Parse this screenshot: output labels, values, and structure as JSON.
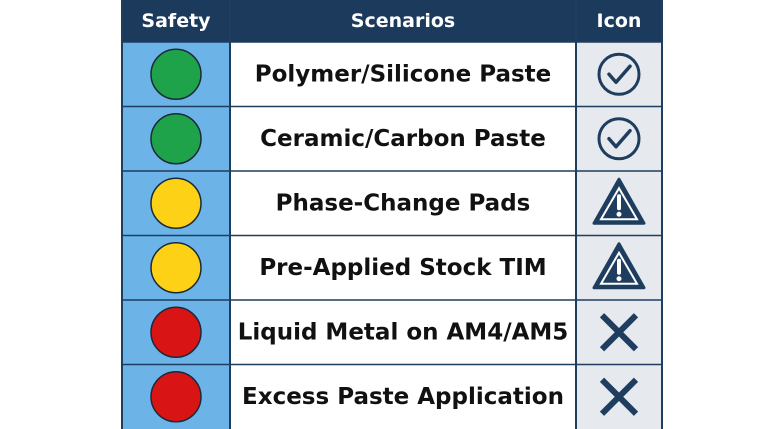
{
  "table": {
    "header": [
      "Safety",
      "Scenarios",
      "Icon"
    ],
    "rows": [
      "Polymer/Silicone Paste",
      "Ceramic/Carbon Paste",
      "Phase-Change Pads",
      "Pre-Applied Stock TIM",
      "Liquid Metal on AM4/AM5",
      "Excess Paste Application"
    ]
  }
}
